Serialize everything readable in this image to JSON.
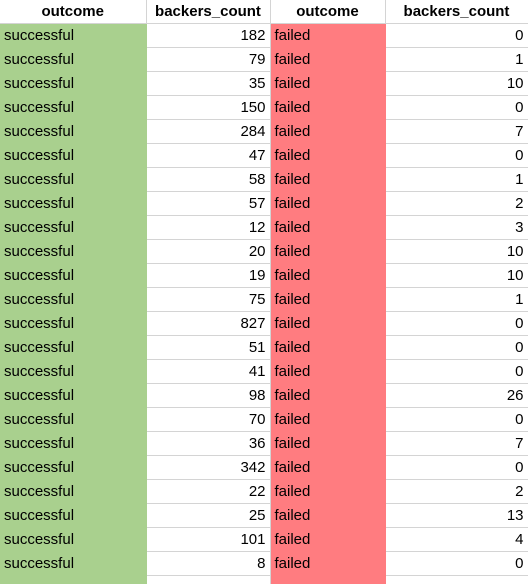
{
  "headers": [
    "outcome",
    "backers_count",
    "outcome",
    "backers_count"
  ],
  "colors": {
    "success_fill": "#a9d08e",
    "failed_fill": "#ff7c80",
    "gridline": "#d4d4d4"
  },
  "rows": [
    {
      "s_outcome": "successful",
      "s_count": "182",
      "f_outcome": "failed",
      "f_count": "0"
    },
    {
      "s_outcome": "successful",
      "s_count": "79",
      "f_outcome": "failed",
      "f_count": "1"
    },
    {
      "s_outcome": "successful",
      "s_count": "35",
      "f_outcome": "failed",
      "f_count": "10"
    },
    {
      "s_outcome": "successful",
      "s_count": "150",
      "f_outcome": "failed",
      "f_count": "0"
    },
    {
      "s_outcome": "successful",
      "s_count": "284",
      "f_outcome": "failed",
      "f_count": "7"
    },
    {
      "s_outcome": "successful",
      "s_count": "47",
      "f_outcome": "failed",
      "f_count": "0"
    },
    {
      "s_outcome": "successful",
      "s_count": "58",
      "f_outcome": "failed",
      "f_count": "1"
    },
    {
      "s_outcome": "successful",
      "s_count": "57",
      "f_outcome": "failed",
      "f_count": "2"
    },
    {
      "s_outcome": "successful",
      "s_count": "12",
      "f_outcome": "failed",
      "f_count": "3"
    },
    {
      "s_outcome": "successful",
      "s_count": "20",
      "f_outcome": "failed",
      "f_count": "10"
    },
    {
      "s_outcome": "successful",
      "s_count": "19",
      "f_outcome": "failed",
      "f_count": "10"
    },
    {
      "s_outcome": "successful",
      "s_count": "75",
      "f_outcome": "failed",
      "f_count": "1"
    },
    {
      "s_outcome": "successful",
      "s_count": "827",
      "f_outcome": "failed",
      "f_count": "0"
    },
    {
      "s_outcome": "successful",
      "s_count": "51",
      "f_outcome": "failed",
      "f_count": "0"
    },
    {
      "s_outcome": "successful",
      "s_count": "41",
      "f_outcome": "failed",
      "f_count": "0"
    },
    {
      "s_outcome": "successful",
      "s_count": "98",
      "f_outcome": "failed",
      "f_count": "26"
    },
    {
      "s_outcome": "successful",
      "s_count": "70",
      "f_outcome": "failed",
      "f_count": "0"
    },
    {
      "s_outcome": "successful",
      "s_count": "36",
      "f_outcome": "failed",
      "f_count": "7"
    },
    {
      "s_outcome": "successful",
      "s_count": "342",
      "f_outcome": "failed",
      "f_count": "0"
    },
    {
      "s_outcome": "successful",
      "s_count": "22",
      "f_outcome": "failed",
      "f_count": "2"
    },
    {
      "s_outcome": "successful",
      "s_count": "25",
      "f_outcome": "failed",
      "f_count": "13"
    },
    {
      "s_outcome": "successful",
      "s_count": "101",
      "f_outcome": "failed",
      "f_count": "4"
    },
    {
      "s_outcome": "successful",
      "s_count": "8",
      "f_outcome": "failed",
      "f_count": "0"
    }
  ]
}
